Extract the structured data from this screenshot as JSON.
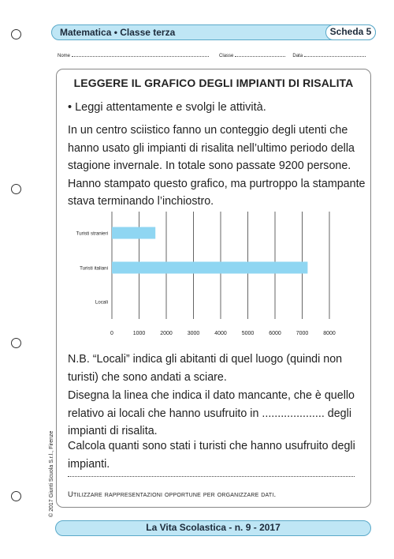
{
  "header": {
    "subject": "Matematica • Classe terza",
    "scheda": "Scheda 5"
  },
  "fields": {
    "nome": "Nome",
    "classe": "Classe",
    "data": "Data"
  },
  "title": "LEGGERE IL GRAFICO DEGLI IMPIANTI DI RISALITA",
  "instruction": "• Leggi attentamente e svolgi le attività.",
  "intro": "In un centro sciistico fanno un conteggio degli utenti che hanno usato gli impianti di risalita nell’ultimo periodo della stagione invernale. In totale sono passate 9200 persone. Hanno stampato questo grafico, ma purtroppo la stampante stava terminando l’inchiostro.",
  "chart_data": {
    "type": "bar",
    "orientation": "horizontal",
    "categories": [
      "Turisti stranieri",
      "Turisti italiani",
      "Locali"
    ],
    "values": [
      1600,
      7200,
      null
    ],
    "x_ticks": [
      "0",
      "1000",
      "2000",
      "3000",
      "4000",
      "5000",
      "6000",
      "7000",
      "8000"
    ],
    "xlim": [
      0,
      8000
    ],
    "bar_color": "#8fd6f2",
    "grid": "vertical"
  },
  "nb": "N.B. “Locali” indica gli abitanti di quel luogo (quindi non turisti) che sono andati a sciare.",
  "task1": "Disegna la linea che indica il dato mancante, che è quello relativo ai locali che hanno usufruito in .................... degli impianti di risalita.",
  "task2": "Calcola quanti sono stati i turisti che hanno usufruito degli impianti.",
  "note": "Utilizzare rappresentazioni opportune per organizzare dati.",
  "footer": "La Vita Scolastica - n. 9 - 2017",
  "copyright": "© 2017 Giunti Scuola S.r.l., Firenze",
  "colors": {
    "accent_fill": "#bfe6f5",
    "accent_border": "#5aa9c9",
    "bar": "#8fd6f2"
  }
}
